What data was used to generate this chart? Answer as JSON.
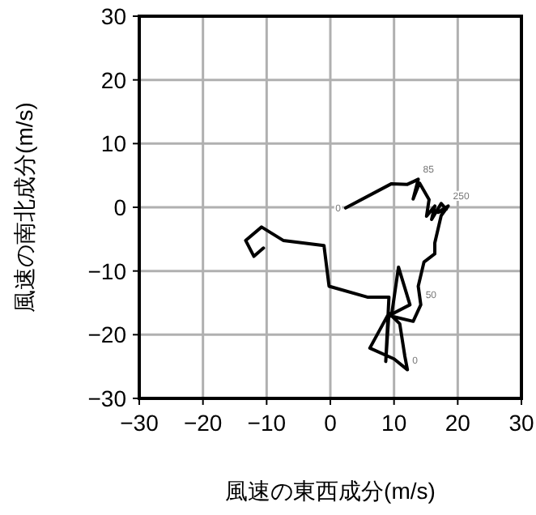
{
  "chart_data": {
    "type": "line",
    "xlabel": "風速の東西成分(m/s)",
    "ylabel": "風速の南北成分(m/s)",
    "xlim": [
      -30,
      30
    ],
    "ylim": [
      -30,
      30
    ],
    "xticks": [
      -30,
      -20,
      -10,
      0,
      10,
      20,
      30
    ],
    "yticks": [
      -30,
      -20,
      -10,
      0,
      10,
      20,
      30
    ],
    "grid": true,
    "series": [
      {
        "color": "#000000",
        "x": [
          2.4,
          9.6,
          12.1,
          13.8,
          13.0,
          14.0,
          15.5,
          15.1,
          16.4,
          15.9,
          17.4,
          18.2,
          16.9,
          18.5,
          17.4,
          16.4,
          16.4,
          14.7,
          13.8,
          14.2,
          13.0,
          9.2,
          12.5,
          10.7,
          9.6,
          10.9,
          11.7,
          12.1,
          10.0,
          6.2,
          9.2,
          8.7,
          9.2,
          5.8,
          -0.2,
          -1.0,
          -7.4,
          -10.8,
          -13.3,
          -12.0,
          -10.5
        ],
        "values": [
          -0.1,
          3.7,
          3.6,
          4.4,
          1.3,
          3.8,
          1.2,
          -1.4,
          0.2,
          -1.9,
          0.6,
          -0.3,
          -0.8,
          0.2,
          -1.3,
          -5.6,
          -7.3,
          -8.6,
          -12.4,
          -15.3,
          -17.9,
          -17.0,
          -15.3,
          -9.4,
          -17.0,
          -18.3,
          -23.4,
          -25.5,
          -23.8,
          -22.1,
          -16.6,
          -24.2,
          -14.1,
          -14.1,
          -12.4,
          -6.0,
          -5.2,
          -3.1,
          -5.2,
          -7.7,
          -6.4
        ]
      }
    ],
    "annotations": [
      {
        "text": "0",
        "x": 2.4,
        "y": -0.1
      },
      {
        "text": "85",
        "x": 13.8,
        "y": 4.4
      },
      {
        "text": "250",
        "x": 18.5,
        "y": 0.2
      },
      {
        "text": "50",
        "x": 14.2,
        "y": -15.3
      },
      {
        "text": "0",
        "x": 12.1,
        "y": -25.5
      }
    ]
  }
}
